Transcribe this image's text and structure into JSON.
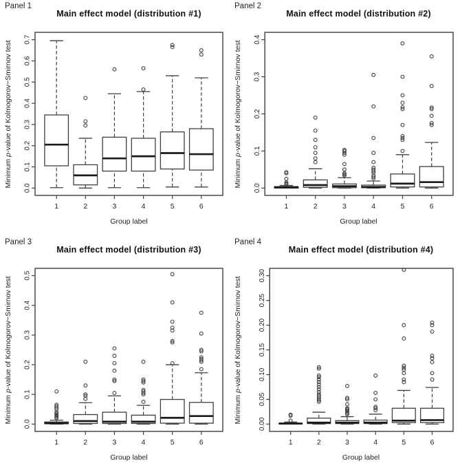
{
  "page": {
    "background": "#ffffff",
    "line_color": "#3f3f3f",
    "text_color": "#222222",
    "median_color": "#1a1a1a"
  },
  "chart_data": [
    {
      "type": "boxplot",
      "panel_label": "Panel 1",
      "title": "Main effect model (distribution #1)",
      "xlabel": "Group label",
      "ylabel": "Minimum p-value of Kolmogorov−Smirnov test",
      "ylabel_prefix": "Minimum ",
      "ylabel_italic": "p",
      "ylabel_suffix": "-value of Kolmogorov−Smirnov test",
      "legend": "none",
      "grid": false,
      "categories": [
        "1",
        "2",
        "3",
        "4",
        "5",
        "6"
      ],
      "ylim": [
        0,
        0.7
      ],
      "ytick_values": [
        0,
        0.1,
        0.2,
        0.3,
        0.4,
        0.5,
        0.6,
        0.7
      ],
      "ytick_labels": [
        "0.0",
        "0.1",
        "0.2",
        "0.3",
        "0.4",
        "0.5",
        "0.6",
        "0.7"
      ],
      "boxes": [
        {
          "low": 0.002,
          "q1": 0.105,
          "median": 0.205,
          "q3": 0.345,
          "high": 0.695,
          "outliers": []
        },
        {
          "low": 0.0,
          "q1": 0.015,
          "median": 0.06,
          "q3": 0.11,
          "high": 0.235,
          "outliers": [
            0.295,
            0.315,
            0.425
          ]
        },
        {
          "low": 0.002,
          "q1": 0.08,
          "median": 0.14,
          "q3": 0.24,
          "high": 0.445,
          "outliers": [
            0.56
          ]
        },
        {
          "low": 0.002,
          "q1": 0.08,
          "median": 0.15,
          "q3": 0.235,
          "high": 0.455,
          "outliers": [
            0.465,
            0.565
          ]
        },
        {
          "low": 0.005,
          "q1": 0.09,
          "median": 0.165,
          "q3": 0.265,
          "high": 0.53,
          "outliers": [
            0.665,
            0.675
          ]
        },
        {
          "low": 0.005,
          "q1": 0.085,
          "median": 0.16,
          "q3": 0.28,
          "high": 0.52,
          "outliers": [
            0.63,
            0.65
          ]
        }
      ]
    },
    {
      "type": "boxplot",
      "panel_label": "Panel 2",
      "title": "Main effect model (distribution #2)",
      "xlabel": "Group label",
      "ylabel": "Minimum p-value of Kolmogorov−Smirnov test",
      "ylabel_prefix": "Minimum ",
      "ylabel_italic": "p",
      "ylabel_suffix": "-value of Kolmogorov−Smirnov test",
      "legend": "none",
      "grid": false,
      "categories": [
        "1",
        "2",
        "3",
        "4",
        "5",
        "6"
      ],
      "ylim": [
        0,
        0.4
      ],
      "ytick_values": [
        0,
        0.1,
        0.2,
        0.3,
        0.4
      ],
      "ytick_labels": [
        "0.0",
        "0.1",
        "0.2",
        "0.3",
        "0.4"
      ],
      "boxes": [
        {
          "low": 0.0,
          "q1": 0.0,
          "median": 0.002,
          "q3": 0.004,
          "high": 0.007,
          "outliers": [
            0.01,
            0.012,
            0.015,
            0.025,
            0.04,
            0.043
          ]
        },
        {
          "low": 0.0,
          "q1": 0.002,
          "median": 0.008,
          "q3": 0.022,
          "high": 0.052,
          "outliers": [
            0.07,
            0.08,
            0.095,
            0.11,
            0.13,
            0.155,
            0.19
          ]
        },
        {
          "low": 0.0,
          "q1": 0.001,
          "median": 0.005,
          "q3": 0.011,
          "high": 0.028,
          "outliers": [
            0.034,
            0.037,
            0.04,
            0.05,
            0.065,
            0.09,
            0.095,
            0.1,
            0.103
          ]
        },
        {
          "low": 0.0,
          "q1": 0.001,
          "median": 0.003,
          "q3": 0.008,
          "high": 0.019,
          "outliers": [
            0.026,
            0.03,
            0.034,
            0.042,
            0.046,
            0.05,
            0.055,
            0.07,
            0.095,
            0.135,
            0.22,
            0.305
          ]
        },
        {
          "low": 0.0,
          "q1": 0.003,
          "median": 0.012,
          "q3": 0.038,
          "high": 0.09,
          "outliers": [
            0.1,
            0.13,
            0.135,
            0.14,
            0.17,
            0.213,
            0.218,
            0.23,
            0.25,
            0.3,
            0.39
          ]
        },
        {
          "low": 0.0,
          "q1": 0.003,
          "median": 0.016,
          "q3": 0.058,
          "high": 0.123,
          "outliers": [
            0.17,
            0.175,
            0.195,
            0.213,
            0.217,
            0.275,
            0.355
          ]
        }
      ]
    },
    {
      "type": "boxplot",
      "panel_label": "Panel 3",
      "title": "Main effect model (distribution #3)",
      "xlabel": "Group label",
      "ylabel": "Minimum p-value of Kolmogorov−Smirnov test",
      "ylabel_prefix": "Minimum ",
      "ylabel_italic": "p",
      "ylabel_suffix": "-value of Kolmogorov−Smirnov test",
      "legend": "none",
      "grid": false,
      "categories": [
        "1",
        "2",
        "3",
        "4",
        "5",
        "6"
      ],
      "ylim": [
        0,
        0.5
      ],
      "ytick_values": [
        0,
        0.1,
        0.2,
        0.3,
        0.4,
        0.5
      ],
      "ytick_labels": [
        "0.0",
        "0.1",
        "0.2",
        "0.3",
        "0.4",
        "0.5"
      ],
      "boxes": [
        {
          "low": 0.0,
          "q1": 0.001,
          "median": 0.003,
          "q3": 0.007,
          "high": 0.013,
          "outliers": [
            0.02,
            0.024,
            0.028,
            0.032,
            0.036,
            0.04,
            0.05,
            0.055,
            0.06,
            0.065,
            0.11
          ]
        },
        {
          "low": 0.0,
          "q1": 0.002,
          "median": 0.01,
          "q3": 0.032,
          "high": 0.072,
          "outliers": [
            0.085,
            0.095,
            0.1,
            0.13,
            0.21
          ]
        },
        {
          "low": 0.0,
          "q1": 0.002,
          "median": 0.008,
          "q3": 0.04,
          "high": 0.095,
          "outliers": [
            0.105,
            0.145,
            0.15,
            0.18,
            0.205,
            0.23,
            0.255
          ]
        },
        {
          "low": 0.0,
          "q1": 0.002,
          "median": 0.008,
          "q3": 0.03,
          "high": 0.063,
          "outliers": [
            0.075,
            0.1,
            0.105,
            0.11,
            0.115,
            0.14,
            0.145,
            0.15,
            0.21
          ]
        },
        {
          "low": 0.0,
          "q1": 0.003,
          "median": 0.021,
          "q3": 0.083,
          "high": 0.2,
          "outliers": [
            0.205,
            0.275,
            0.28,
            0.315,
            0.325,
            0.345,
            0.41,
            0.505
          ]
        },
        {
          "low": 0.0,
          "q1": 0.003,
          "median": 0.027,
          "q3": 0.073,
          "high": 0.173,
          "outliers": [
            0.185,
            0.21,
            0.215,
            0.22,
            0.225,
            0.245,
            0.25,
            0.305,
            0.375
          ]
        }
      ]
    },
    {
      "type": "boxplot",
      "panel_label": "Panel 4",
      "title": "Main effect model (distribution #4)",
      "xlabel": "Group label",
      "ylabel": "Minimum p-value of Kolmogorov−Smirnov test",
      "ylabel_prefix": "Minimum ",
      "ylabel_italic": "p",
      "ylabel_suffix": "-value of Kolmogorov−Smirnov test",
      "legend": "none",
      "grid": false,
      "categories": [
        "1",
        "2",
        "3",
        "4",
        "5",
        "6"
      ],
      "ylim": [
        0,
        0.3
      ],
      "ytick_values": [
        0,
        0.05,
        0.1,
        0.15,
        0.2,
        0.25,
        0.3
      ],
      "ytick_labels": [
        "0.00",
        "0.05",
        "0.10",
        "0.15",
        "0.20",
        "0.25",
        "0.30"
      ],
      "boxes": [
        {
          "low": 0.0,
          "q1": 0.0,
          "median": 0.001,
          "q3": 0.002,
          "high": 0.004,
          "outliers": [
            0.007,
            0.017,
            0.019
          ]
        },
        {
          "low": 0.0,
          "q1": 0.001,
          "median": 0.003,
          "q3": 0.012,
          "high": 0.024,
          "outliers": [
            0.045,
            0.048,
            0.051,
            0.054,
            0.057,
            0.06,
            0.065,
            0.07,
            0.075,
            0.08,
            0.085,
            0.09,
            0.095,
            0.098,
            0.112,
            0.115
          ]
        },
        {
          "low": 0.0,
          "q1": 0.001,
          "median": 0.003,
          "q3": 0.007,
          "high": 0.015,
          "outliers": [
            0.02,
            0.022,
            0.025,
            0.028,
            0.03,
            0.032,
            0.04,
            0.05,
            0.053,
            0.077
          ]
        },
        {
          "low": 0.0,
          "q1": 0.001,
          "median": 0.003,
          "q3": 0.008,
          "high": 0.02,
          "outliers": [
            0.028,
            0.032,
            0.035,
            0.05,
            0.063,
            0.098
          ]
        },
        {
          "low": 0.0,
          "q1": 0.003,
          "median": 0.007,
          "q3": 0.032,
          "high": 0.068,
          "outliers": [
            0.085,
            0.09,
            0.103,
            0.11,
            0.114,
            0.118,
            0.173,
            0.2,
            0.312
          ]
        },
        {
          "low": 0.0,
          "q1": 0.003,
          "median": 0.008,
          "q3": 0.032,
          "high": 0.074,
          "outliers": [
            0.09,
            0.103,
            0.125,
            0.133,
            0.138,
            0.187,
            0.2,
            0.205
          ]
        }
      ]
    }
  ]
}
